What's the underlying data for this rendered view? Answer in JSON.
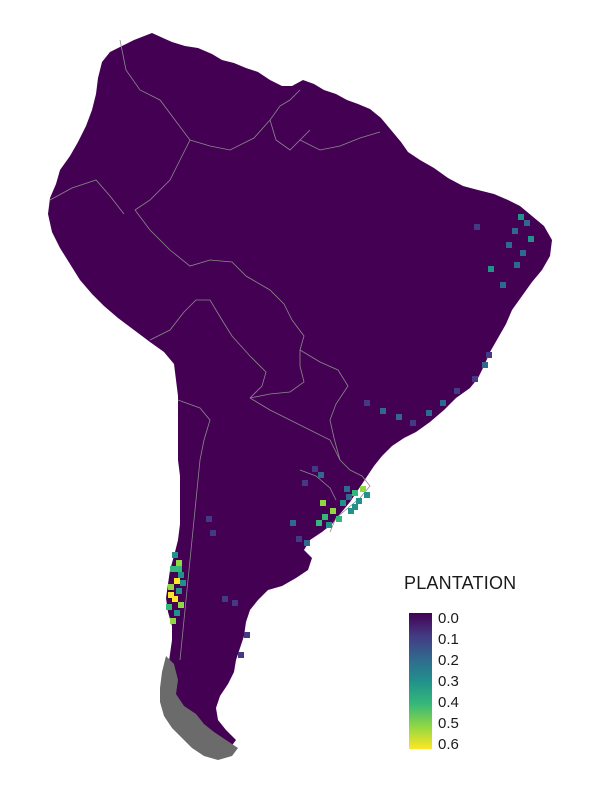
{
  "map": {
    "region": "South America",
    "variable": "PLANTATION",
    "background_color": "#ffffff",
    "land_color": "#440154",
    "no_data_color": "#6b6b6b",
    "border_color": "#8a8a8a",
    "hotspots": [
      {
        "area": "southern Chile",
        "level": 0.6
      },
      {
        "area": "south-eastern Brazil / Uruguay",
        "level": 0.5
      },
      {
        "area": "north-eastern Brazil coast",
        "level": 0.3
      },
      {
        "area": "south-eastern Brazil coast",
        "level": 0.2
      },
      {
        "area": "northern Argentina",
        "level": 0.2
      },
      {
        "area": "Patagonia (Argentina)",
        "level": 0.1
      }
    ]
  },
  "legend": {
    "title": "PLANTATION",
    "colormap": "viridis",
    "min": 0.0,
    "max": 0.6,
    "ticks": [
      "0.0",
      "0.1",
      "0.2",
      "0.3",
      "0.4",
      "0.5",
      "0.6"
    ],
    "colors": [
      "#440154",
      "#443a83",
      "#31688e",
      "#21918c",
      "#35b779",
      "#90d743",
      "#fde725"
    ]
  }
}
